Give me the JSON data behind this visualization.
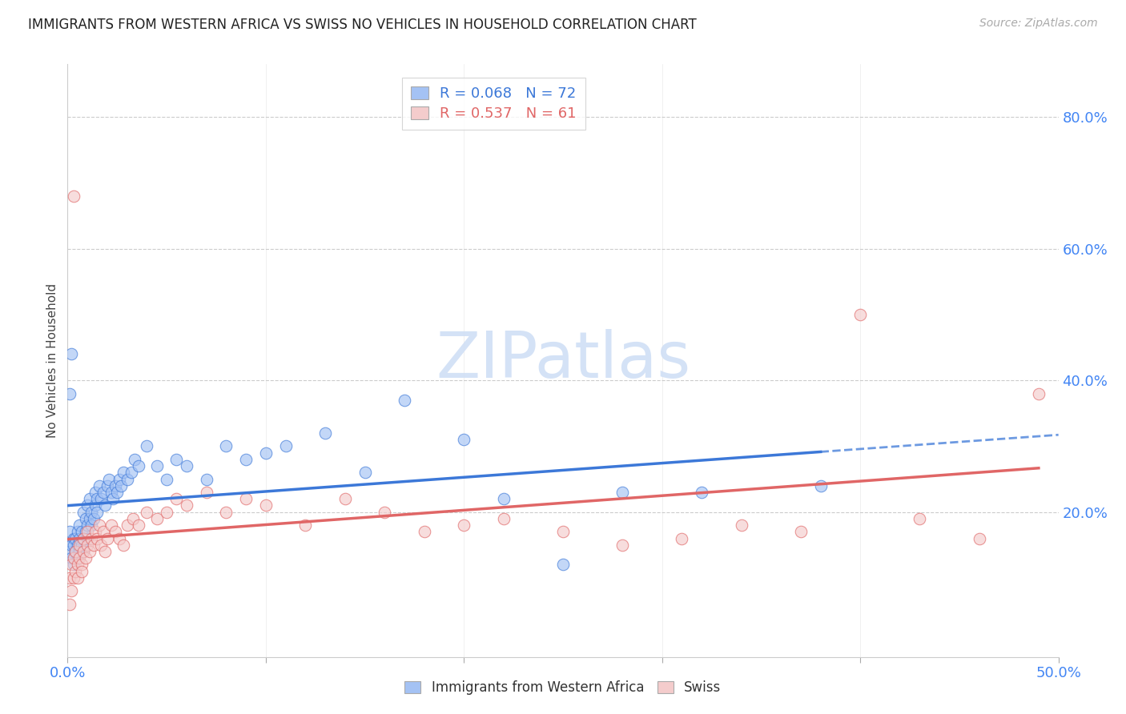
{
  "title": "IMMIGRANTS FROM WESTERN AFRICA VS SWISS NO VEHICLES IN HOUSEHOLD CORRELATION CHART",
  "source": "Source: ZipAtlas.com",
  "ylabel": "No Vehicles in Household",
  "xlim": [
    0.0,
    0.5
  ],
  "ylim": [
    -0.02,
    0.88
  ],
  "blue_color": "#a4c2f4",
  "pink_color": "#ea9999",
  "blue_line_color": "#3c78d8",
  "pink_line_color": "#e06666",
  "blue_scatter_color": "#a4c2f4",
  "pink_scatter_color": "#f4cccc",
  "watermark_text": "ZIPatlas",
  "watermark_color": "#d0dff5",
  "legend_r1": "R = 0.068",
  "legend_n1": "N = 72",
  "legend_r2": "R = 0.537",
  "legend_n2": "N = 61",
  "blue_points_x": [
    0.001,
    0.001,
    0.002,
    0.002,
    0.003,
    0.003,
    0.003,
    0.004,
    0.004,
    0.005,
    0.005,
    0.005,
    0.006,
    0.006,
    0.006,
    0.007,
    0.007,
    0.008,
    0.008,
    0.008,
    0.009,
    0.009,
    0.01,
    0.01,
    0.01,
    0.011,
    0.011,
    0.012,
    0.012,
    0.013,
    0.014,
    0.014,
    0.015,
    0.015,
    0.016,
    0.017,
    0.018,
    0.019,
    0.02,
    0.021,
    0.022,
    0.023,
    0.024,
    0.025,
    0.026,
    0.027,
    0.028,
    0.03,
    0.032,
    0.034,
    0.036,
    0.04,
    0.045,
    0.05,
    0.055,
    0.06,
    0.07,
    0.08,
    0.09,
    0.1,
    0.11,
    0.13,
    0.15,
    0.17,
    0.2,
    0.22,
    0.25,
    0.28,
    0.32,
    0.38,
    0.001,
    0.002
  ],
  "blue_points_y": [
    0.17,
    0.14,
    0.15,
    0.13,
    0.16,
    0.15,
    0.12,
    0.14,
    0.16,
    0.15,
    0.13,
    0.17,
    0.14,
    0.16,
    0.18,
    0.15,
    0.17,
    0.16,
    0.14,
    0.2,
    0.17,
    0.19,
    0.18,
    0.16,
    0.21,
    0.19,
    0.22,
    0.2,
    0.18,
    0.19,
    0.21,
    0.23,
    0.2,
    0.22,
    0.24,
    0.22,
    0.23,
    0.21,
    0.24,
    0.25,
    0.23,
    0.22,
    0.24,
    0.23,
    0.25,
    0.24,
    0.26,
    0.25,
    0.26,
    0.28,
    0.27,
    0.3,
    0.27,
    0.25,
    0.28,
    0.27,
    0.25,
    0.3,
    0.28,
    0.29,
    0.3,
    0.32,
    0.26,
    0.37,
    0.31,
    0.22,
    0.12,
    0.23,
    0.23,
    0.24,
    0.38,
    0.44
  ],
  "pink_points_x": [
    0.001,
    0.001,
    0.002,
    0.002,
    0.003,
    0.003,
    0.004,
    0.004,
    0.005,
    0.005,
    0.006,
    0.006,
    0.007,
    0.007,
    0.008,
    0.008,
    0.009,
    0.01,
    0.01,
    0.011,
    0.012,
    0.013,
    0.014,
    0.015,
    0.016,
    0.017,
    0.018,
    0.019,
    0.02,
    0.022,
    0.024,
    0.026,
    0.028,
    0.03,
    0.033,
    0.036,
    0.04,
    0.045,
    0.05,
    0.055,
    0.06,
    0.07,
    0.08,
    0.09,
    0.1,
    0.12,
    0.14,
    0.16,
    0.18,
    0.2,
    0.22,
    0.25,
    0.28,
    0.31,
    0.34,
    0.37,
    0.4,
    0.43,
    0.46,
    0.49,
    0.003
  ],
  "pink_points_y": [
    0.1,
    0.06,
    0.08,
    0.12,
    0.1,
    0.13,
    0.11,
    0.14,
    0.1,
    0.12,
    0.13,
    0.15,
    0.12,
    0.11,
    0.14,
    0.16,
    0.13,
    0.15,
    0.17,
    0.14,
    0.16,
    0.15,
    0.17,
    0.16,
    0.18,
    0.15,
    0.17,
    0.14,
    0.16,
    0.18,
    0.17,
    0.16,
    0.15,
    0.18,
    0.19,
    0.18,
    0.2,
    0.19,
    0.2,
    0.22,
    0.21,
    0.23,
    0.2,
    0.22,
    0.21,
    0.18,
    0.22,
    0.2,
    0.17,
    0.18,
    0.19,
    0.17,
    0.15,
    0.16,
    0.18,
    0.17,
    0.5,
    0.19,
    0.16,
    0.38,
    0.68
  ]
}
